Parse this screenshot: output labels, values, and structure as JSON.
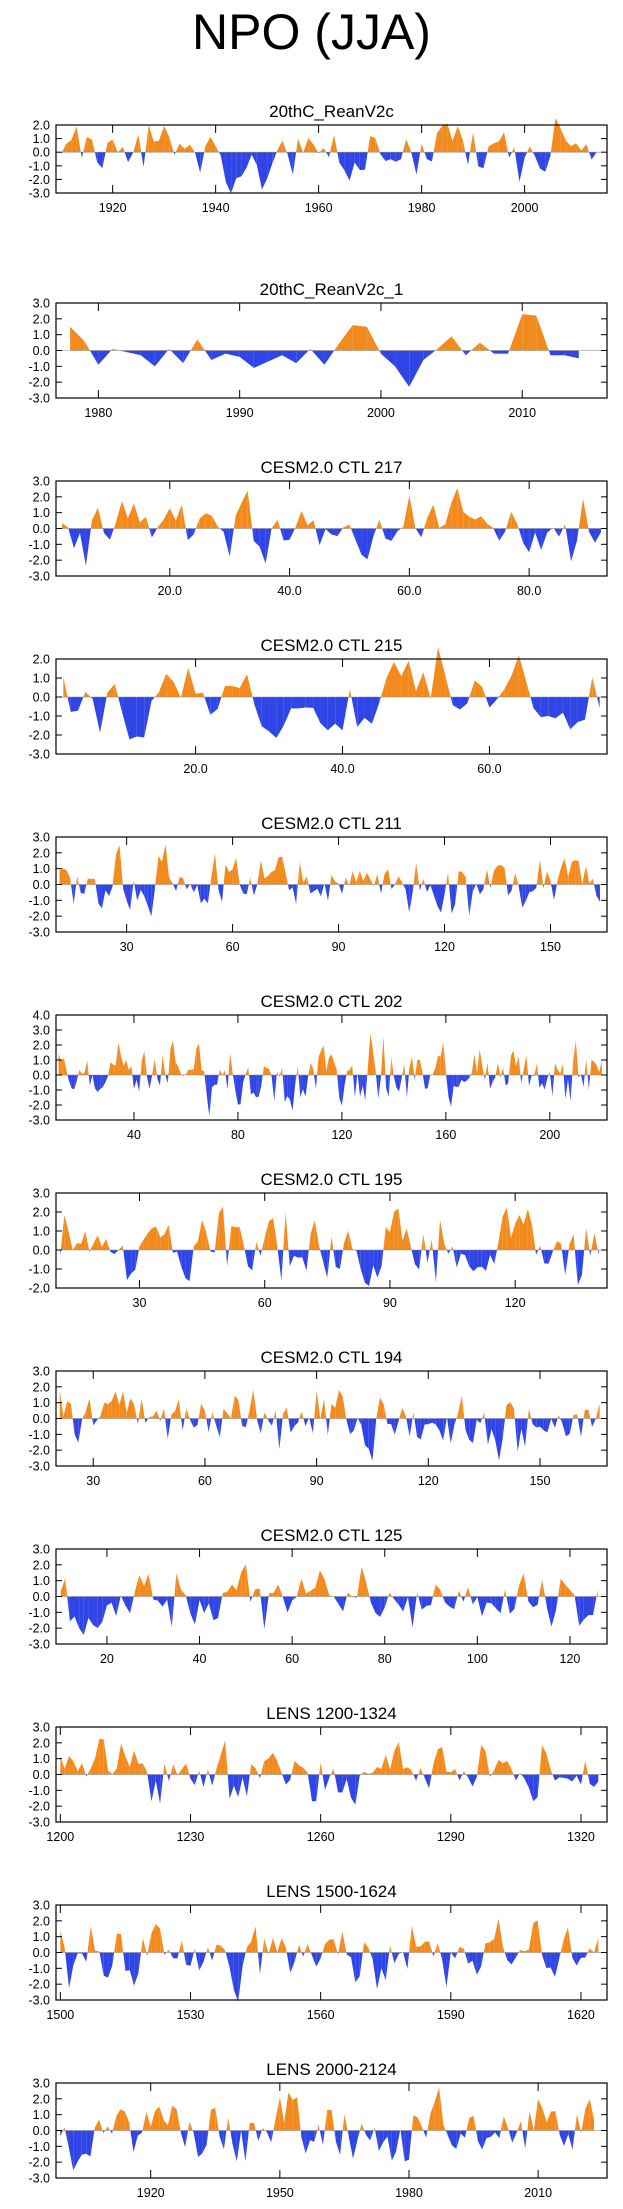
{
  "page": {
    "title": "NPO (JJA)",
    "colors": {
      "positive": "#f28a1d",
      "negative": "#2f45e6",
      "axis": "#000000"
    }
  },
  "chart_data": [
    {
      "type": "area",
      "title": "20thC_ReanV2c",
      "ylabel": "",
      "xlabel": "",
      "grid": false,
      "xlim": [
        1909,
        2016
      ],
      "ylim": [
        -3,
        2
      ],
      "yticks": [
        -3,
        -2,
        -1,
        0,
        1,
        2
      ],
      "ytick_labels": [
        "-3.0",
        "-2.0",
        "-1.0",
        "0.0",
        "1.0",
        "2.0"
      ],
      "xticks": [
        1920,
        1940,
        1960,
        1980,
        2000
      ],
      "xtick_labels": [
        "1920",
        "1940",
        "1960",
        "1980",
        "2000"
      ],
      "x_start": 1910,
      "x_step": 1,
      "n": 105,
      "amplitude": 0.95,
      "seed": 1
    },
    {
      "type": "area",
      "title": "20thC_ReanV2c_1",
      "ylabel": "",
      "xlabel": "",
      "grid": false,
      "xlim": [
        1977,
        2016
      ],
      "ylim": [
        -3,
        3
      ],
      "yticks": [
        -3,
        -2,
        -1,
        0,
        1,
        2,
        3
      ],
      "ytick_labels": [
        "-3.0",
        "-2.0",
        "-1.0",
        "0.0",
        "1.0",
        "2.0",
        "3.0"
      ],
      "xticks": [
        1980,
        1990,
        2000,
        2010
      ],
      "xtick_labels": [
        "1980",
        "1990",
        "2000",
        "2010"
      ],
      "x": [
        1978,
        1979,
        1980,
        1981,
        1982,
        1983,
        1984,
        1985,
        1986,
        1987,
        1988,
        1989,
        1990,
        1991,
        1992,
        1993,
        1994,
        1995,
        1996,
        1997,
        1998,
        1999,
        2000,
        2001,
        2002,
        2003,
        2004,
        2005,
        2006,
        2007,
        2008,
        2009,
        2010,
        2011,
        2012,
        2013,
        2014
      ],
      "values": [
        1.5,
        0.6,
        -0.9,
        0.1,
        -0.1,
        -0.3,
        -1.0,
        0.1,
        -0.8,
        0.7,
        -0.6,
        -0.2,
        -0.4,
        -1.1,
        -0.7,
        -0.3,
        -0.8,
        0.1,
        -0.9,
        0.4,
        1.6,
        1.5,
        -0.2,
        -1.0,
        -2.3,
        -0.6,
        0.1,
        0.9,
        -0.3,
        0.5,
        -0.2,
        -0.2,
        2.3,
        2.2,
        -0.3,
        -0.3,
        -0.5
      ]
    },
    {
      "type": "area",
      "title": "CESM2.0 CTL 217",
      "ylabel": "",
      "xlabel": "",
      "grid": false,
      "xlim": [
        1,
        93
      ],
      "ylim": [
        -3,
        3
      ],
      "yticks": [
        -3,
        -2,
        -1,
        0,
        1,
        2,
        3
      ],
      "ytick_labels": [
        "-3.0",
        "-2.0",
        "-1.0",
        "0.0",
        "1.0",
        "2.0",
        "3.0"
      ],
      "xticks": [
        20,
        40,
        60,
        80
      ],
      "xtick_labels": [
        "20.0",
        "40.0",
        "60.0",
        "80.0"
      ],
      "x_start": 2,
      "x_step": 1,
      "n": 91,
      "amplitude": 1.05,
      "seed": 3
    },
    {
      "type": "area",
      "title": "CESM2.0 CTL 215",
      "ylabel": "",
      "xlabel": "",
      "grid": false,
      "xlim": [
        1,
        76
      ],
      "ylim": [
        -3,
        2
      ],
      "yticks": [
        -3,
        -2,
        -1,
        0,
        1,
        2
      ],
      "ytick_labels": [
        "-3.0",
        "-2.0",
        "-1.0",
        "0.0",
        "1.0",
        "2.0"
      ],
      "xticks": [
        20,
        40,
        60
      ],
      "xtick_labels": [
        "20.0",
        "40.0",
        "60.0"
      ],
      "x_start": 2,
      "x_step": 1,
      "n": 74,
      "amplitude": 1.05,
      "seed": 4
    },
    {
      "type": "area",
      "title": "CESM2.0 CTL 211",
      "ylabel": "",
      "xlabel": "",
      "grid": false,
      "xlim": [
        10,
        166
      ],
      "ylim": [
        -3,
        3
      ],
      "yticks": [
        -3,
        -2,
        -1,
        0,
        1,
        2,
        3
      ],
      "ytick_labels": [
        "-3.0",
        "-2.0",
        "-1.0",
        "0.0",
        "1.0",
        "2.0",
        "3.0"
      ],
      "xticks": [
        30,
        60,
        90,
        120,
        150
      ],
      "xtick_labels": [
        "30",
        "60",
        "90",
        "120",
        "150"
      ],
      "x_start": 11,
      "x_step": 1,
      "n": 154,
      "amplitude": 0.9,
      "seed": 5
    },
    {
      "type": "area",
      "title": "CESM2.0 CTL 202",
      "ylabel": "",
      "xlabel": "",
      "grid": false,
      "xlim": [
        10,
        222
      ],
      "ylim": [
        -3,
        4
      ],
      "yticks": [
        -3,
        -2,
        -1,
        0,
        1,
        2,
        3,
        4
      ],
      "ytick_labels": [
        "-3.0",
        "-2.0",
        "-1.0",
        "0.0",
        "1.0",
        "2.0",
        "3.0",
        "4.0"
      ],
      "xticks": [
        40,
        80,
        120,
        160,
        200
      ],
      "xtick_labels": [
        "40",
        "80",
        "120",
        "160",
        "200"
      ],
      "x_start": 11,
      "x_step": 1,
      "n": 210,
      "amplitude": 1.0,
      "seed": 6
    },
    {
      "type": "area",
      "title": "CESM2.0 CTL 195",
      "ylabel": "",
      "xlabel": "",
      "grid": false,
      "xlim": [
        10,
        142
      ],
      "ylim": [
        -2,
        3
      ],
      "yticks": [
        -2,
        -1,
        0,
        1,
        2,
        3
      ],
      "ytick_labels": [
        "-2.0",
        "-1.0",
        "0.0",
        "1.0",
        "2.0",
        "3.0"
      ],
      "xticks": [
        30,
        60,
        90,
        120
      ],
      "xtick_labels": [
        "30",
        "60",
        "90",
        "120"
      ],
      "x_start": 11,
      "x_step": 1,
      "n": 130,
      "amplitude": 0.95,
      "seed": 7
    },
    {
      "type": "area",
      "title": "CESM2.0 CTL 194",
      "ylabel": "",
      "xlabel": "",
      "grid": false,
      "xlim": [
        20,
        168
      ],
      "ylim": [
        -3,
        3
      ],
      "yticks": [
        -3,
        -2,
        -1,
        0,
        1,
        2,
        3
      ],
      "ytick_labels": [
        "-3.0",
        "-2.0",
        "-1.0",
        "0.0",
        "1.0",
        "2.0",
        "3.0"
      ],
      "xticks": [
        30,
        60,
        90,
        120,
        150
      ],
      "xtick_labels": [
        "30",
        "60",
        "90",
        "120",
        "150"
      ],
      "x_start": 21,
      "x_step": 1,
      "n": 146,
      "amplitude": 0.95,
      "seed": 8
    },
    {
      "type": "area",
      "title": "CESM2.0 CTL 125",
      "ylabel": "",
      "xlabel": "",
      "grid": false,
      "xlim": [
        9,
        128
      ],
      "ylim": [
        -3,
        3
      ],
      "yticks": [
        -3,
        -2,
        -1,
        0,
        1,
        2,
        3
      ],
      "ytick_labels": [
        "-3.0",
        "-2.0",
        "-1.0",
        "0.0",
        "1.0",
        "2.0",
        "3.0"
      ],
      "xticks": [
        20,
        40,
        60,
        80,
        100,
        120
      ],
      "xtick_labels": [
        "20",
        "40",
        "60",
        "80",
        "100",
        "120"
      ],
      "x_start": 10,
      "x_step": 1,
      "n": 117,
      "amplitude": 0.95,
      "seed": 9
    },
    {
      "type": "area",
      "title": "LENS 1200-1324",
      "ylabel": "",
      "xlabel": "",
      "grid": false,
      "xlim": [
        1199,
        1326
      ],
      "ylim": [
        -3,
        3
      ],
      "yticks": [
        -3,
        -2,
        -1,
        0,
        1,
        2,
        3
      ],
      "ytick_labels": [
        "-3.0",
        "-2.0",
        "-1.0",
        "0.0",
        "1.0",
        "2.0",
        "3.0"
      ],
      "xticks": [
        1200,
        1230,
        1260,
        1290,
        1320
      ],
      "xtick_labels": [
        "1200",
        "1230",
        "1260",
        "1290",
        "1320"
      ],
      "x_start": 1200,
      "x_step": 1,
      "n": 125,
      "amplitude": 0.95,
      "seed": 10
    },
    {
      "type": "area",
      "title": "LENS 1500-1624",
      "ylabel": "",
      "xlabel": "",
      "grid": false,
      "xlim": [
        1499,
        1626
      ],
      "ylim": [
        -3,
        3
      ],
      "yticks": [
        -3,
        -2,
        -1,
        0,
        1,
        2,
        3
      ],
      "ytick_labels": [
        "-3.0",
        "-2.0",
        "-1.0",
        "0.0",
        "1.0",
        "2.0",
        "3.0"
      ],
      "xticks": [
        1500,
        1530,
        1560,
        1590,
        1620
      ],
      "xtick_labels": [
        "1500",
        "1530",
        "1560",
        "1590",
        "1620"
      ],
      "x_start": 1500,
      "x_step": 1,
      "n": 125,
      "amplitude": 0.95,
      "seed": 11
    },
    {
      "type": "area",
      "title": "LENS 2000-2124",
      "ylabel": "",
      "xlabel": "",
      "grid": false,
      "xlim": [
        1898,
        2026
      ],
      "ylim": [
        -3,
        3
      ],
      "yticks": [
        -3,
        -2,
        -1,
        0,
        1,
        2,
        3
      ],
      "ytick_labels": [
        "-3.0",
        "-2.0",
        "-1.0",
        "0.0",
        "1.0",
        "2.0",
        "3.0"
      ],
      "xticks": [
        1920,
        1950,
        1980,
        2010
      ],
      "xtick_labels": [
        "1920",
        "1950",
        "1980",
        "2010"
      ],
      "x_start": 1899,
      "x_step": 1,
      "n": 125,
      "amplitude": 0.95,
      "seed": 12
    }
  ]
}
